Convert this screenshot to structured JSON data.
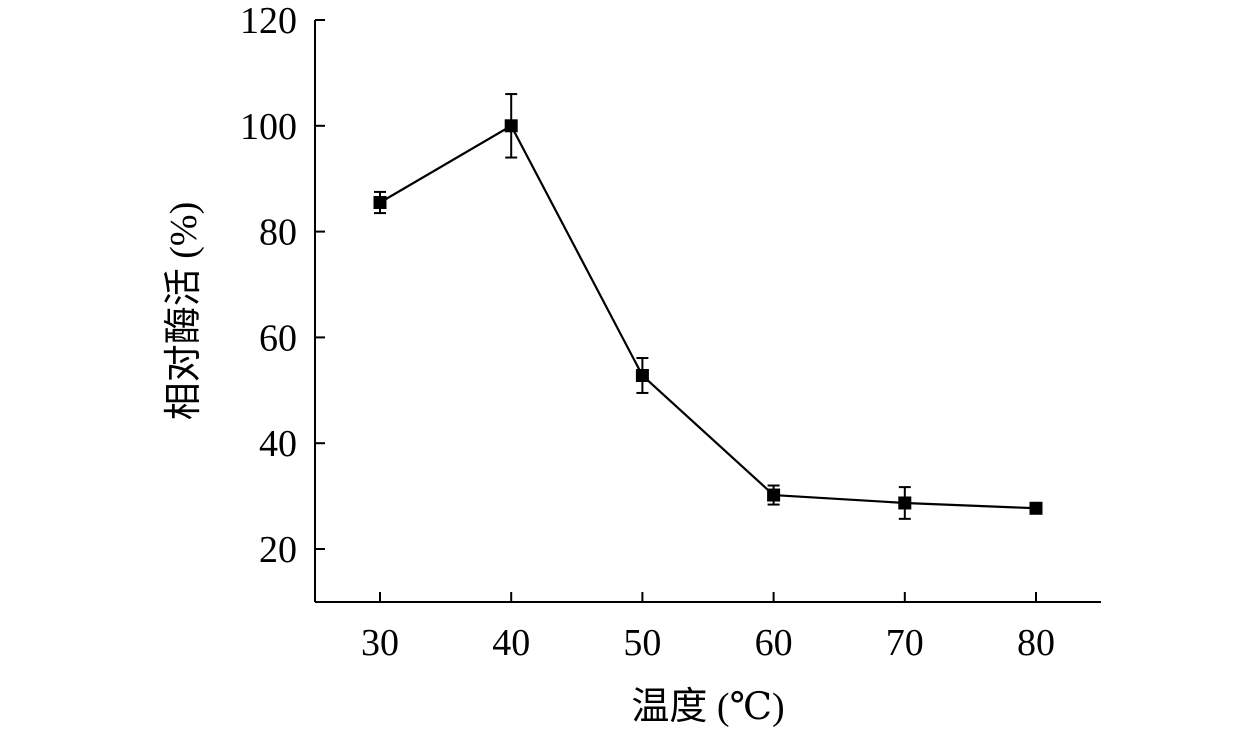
{
  "chart_data": {
    "type": "line",
    "xlabel": "温度 (℃)",
    "ylabel": "相对酶活 (%)",
    "x": [
      30,
      40,
      50,
      60,
      70,
      80
    ],
    "series": [
      {
        "values": [
          85.5,
          100,
          52.8,
          30.2,
          28.7,
          27.7
        ],
        "errors": [
          2.0,
          6.0,
          3.3,
          1.8,
          3.0,
          0.6
        ],
        "marker": "square",
        "color": "#000000"
      }
    ],
    "xlim": [
      25,
      85
    ],
    "ylim": [
      10,
      120
    ],
    "xticks": [
      "30",
      "40",
      "50",
      "60",
      "70",
      "80"
    ],
    "yticks": [
      "20",
      "40",
      "60",
      "80",
      "100",
      "120"
    ],
    "grid": false,
    "legend": "none"
  }
}
